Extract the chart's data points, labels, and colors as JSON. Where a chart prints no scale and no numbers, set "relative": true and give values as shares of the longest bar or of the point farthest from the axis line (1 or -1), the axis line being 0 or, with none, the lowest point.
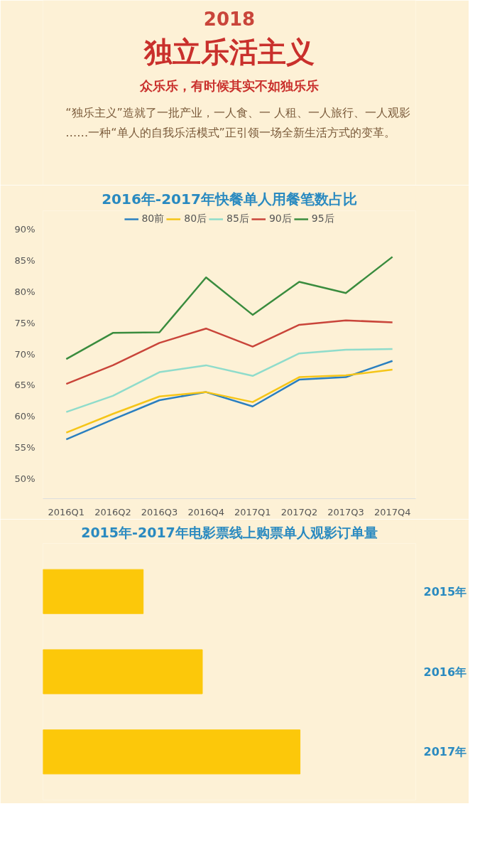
{
  "chart_data": [
    {
      "type": "other",
      "title": "独立乐活主义",
      "subtitle": "众乐乐，有时候其实不如独乐乐",
      "annotations": [
        "2018",
        "“独乐主义”造就了一批产业，一人食、一 人租、一人旅行、一人观影……一种“单人的自我乐活模式”正引领一场全新生活方式的变革。"
      ]
    },
    {
      "type": "line",
      "title": "2016年-2017年快餐单人用餐笔数占比",
      "categories": [
        "2016Q1",
        "2016Q2",
        "2016Q3",
        "2016Q4",
        "2017Q1",
        "2017Q2",
        "2017Q3",
        "2017Q4"
      ],
      "ylim": [
        46.8,
        93
      ],
      "yticks": [
        {
          "value": 50,
          "label": "50%"
        },
        {
          "value": 55,
          "label": "55%"
        },
        {
          "value": 60,
          "label": "60%"
        },
        {
          "value": 65,
          "label": "65%"
        },
        {
          "value": 70,
          "label": "70%"
        },
        {
          "value": 75,
          "label": "75%"
        },
        {
          "value": 80,
          "label": "80%"
        },
        {
          "value": 85,
          "label": "85%"
        },
        {
          "value": 90,
          "label": "90%"
        }
      ],
      "legend": "top",
      "series": [
        {
          "name": "80前",
          "color": "#2a7fc0",
          "values": [
            56.3,
            59.5,
            62.6,
            63.9,
            61.6,
            65.9,
            66.3,
            68.9
          ]
        },
        {
          "name": "80后",
          "color": "#f5c518",
          "values": [
            57.4,
            60.4,
            63.2,
            63.9,
            62.3,
            66.3,
            66.6,
            67.5
          ]
        },
        {
          "name": "85后",
          "color": "#8fdccb",
          "values": [
            60.7,
            63.3,
            67.1,
            68.2,
            66.5,
            70.1,
            70.7,
            70.8
          ]
        },
        {
          "name": "90后",
          "color": "#c9453a",
          "values": [
            65.2,
            68.2,
            71.8,
            74.1,
            71.2,
            74.7,
            75.4,
            75.1
          ]
        },
        {
          "name": "95后",
          "color": "#3a8c3e",
          "values": [
            69.2,
            73.4,
            73.5,
            82.3,
            76.3,
            81.6,
            79.8,
            85.6
          ]
        }
      ]
    },
    {
      "type": "bar",
      "orientation": "horizontal",
      "relative": true,
      "title": "2015年-2017年电影票线上购票单人观影订单量",
      "categories": [
        "2015年",
        "2016年",
        "2017年"
      ],
      "values": [
        0.39,
        0.62,
        1
      ],
      "color": "#fcc80a"
    }
  ]
}
